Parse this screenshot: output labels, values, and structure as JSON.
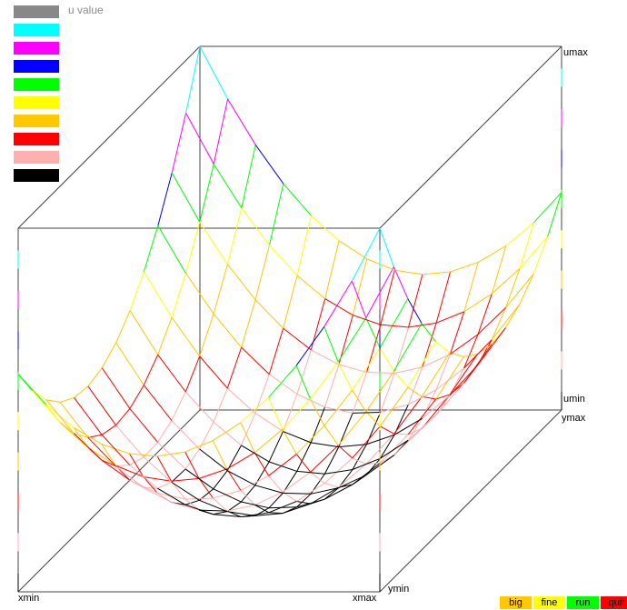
{
  "legend": {
    "title": "u value",
    "colors": [
      "#888888",
      "#00ffff",
      "#ff00ff",
      "#0000ff",
      "#00ff00",
      "#ffff00",
      "#ffc800",
      "#ff0000",
      "#ffafaf",
      "#000000"
    ]
  },
  "axis_labels": {
    "umax": "umax",
    "umin": "umin",
    "xmin": "xmin",
    "xmax": "xmax",
    "ymin": "ymin",
    "ymax": "ymax"
  },
  "buttons": [
    {
      "label": "big",
      "color": "#ffc800"
    },
    {
      "label": "fine",
      "color": "#ffff00"
    },
    {
      "label": "run",
      "color": "#00ff00"
    },
    {
      "label": "quit",
      "color": "#ff0000"
    }
  ],
  "chart_data": {
    "type": "surface",
    "grid": 13,
    "function": "u = (2x-1)^2 + (2y-1)^2 - 2(x-0.5)(y-0.5) (sampled on unit square)",
    "color_levels": [
      "#000000",
      "#ffafaf",
      "#ff0000",
      "#ffc800",
      "#ffff00",
      "#00ff00",
      "#0000ff",
      "#ff00ff",
      "#00ffff"
    ]
  }
}
